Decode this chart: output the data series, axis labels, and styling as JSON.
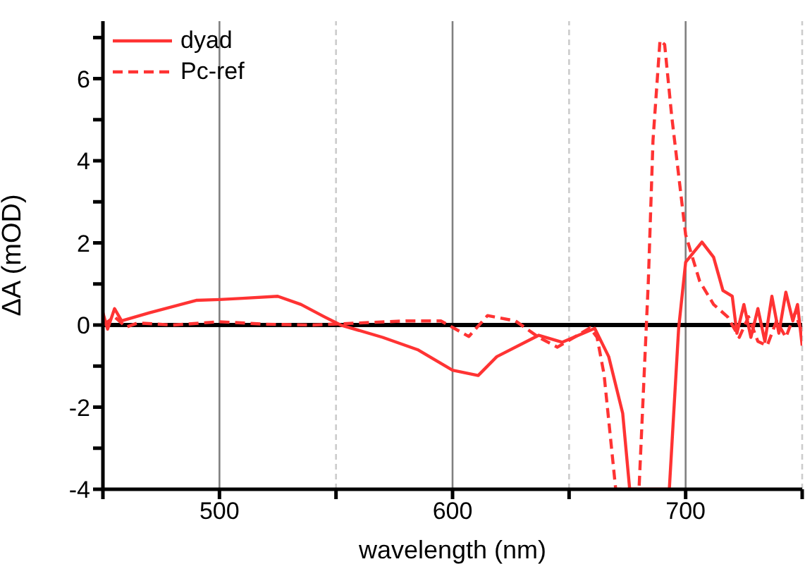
{
  "chart_data": {
    "type": "line",
    "xlabel": "wavelength (nm)",
    "ylabel": "ΔA (mOD)",
    "xlim": [
      450,
      750
    ],
    "ylim": [
      -4,
      7.4
    ],
    "xticks": [
      {
        "value": 450,
        "label": null
      },
      500,
      {
        "value": 550,
        "label": null
      },
      600,
      {
        "value": 650,
        "label": null
      },
      700,
      {
        "value": 750,
        "label": null
      }
    ],
    "yticks": [
      -4,
      {
        "value": -3,
        "label": null
      },
      -2,
      {
        "value": -1,
        "label": null
      },
      0,
      {
        "value": 1,
        "label": null
      },
      2,
      {
        "value": 3,
        "label": null
      },
      4,
      {
        "value": 5,
        "label": null
      },
      6,
      {
        "value": 7,
        "label": null
      }
    ],
    "grid": "x",
    "legend": "top left",
    "ref_lines": [
      {
        "axis": "y",
        "value": 0,
        "color": "#000000"
      }
    ],
    "series": [
      {
        "name": "dyad",
        "color": "#ff3333",
        "line_style": "solid",
        "x": [
          450,
          452,
          455,
          458,
          470,
          490,
          500,
          510,
          525,
          535,
          545,
          552,
          570,
          585,
          600,
          611,
          619,
          637,
          647,
          661,
          667,
          673,
          676,
          693,
          697,
          700,
          707,
          712,
          716,
          720,
          722,
          725,
          728,
          731,
          734,
          737,
          740,
          743,
          746,
          748,
          750
        ],
        "values": [
          0.3,
          -0.1,
          0.4,
          0.1,
          0.3,
          0.6,
          0.62,
          0.65,
          0.7,
          0.5,
          0.2,
          0,
          -0.3,
          -0.6,
          -1.1,
          -1.23,
          -0.77,
          -0.25,
          -0.42,
          -0.08,
          -0.77,
          -2.15,
          -4,
          -4,
          -0.08,
          1.53,
          2.02,
          1.65,
          0.84,
          0.7,
          -0.2,
          0.5,
          -0.3,
          0.4,
          -0.4,
          0.7,
          -0.2,
          0.8,
          0.1,
          0.5,
          -0.5
        ]
      },
      {
        "name": "Pc-ref",
        "color": "#ff3333",
        "line_style": "dashed",
        "x": [
          450,
          455,
          460,
          465,
          480,
          500,
          520,
          540,
          560,
          580,
          595,
          607,
          615,
          627,
          637,
          645,
          659,
          662,
          665,
          670,
          680,
          684,
          686,
          689,
          691,
          694,
          700,
          706,
          712,
          718,
          723,
          727,
          731,
          735,
          739,
          743,
          747,
          750
        ],
        "values": [
          0,
          0.2,
          -0.05,
          0.05,
          0,
          0.08,
          0.02,
          0,
          0.05,
          0.1,
          0.1,
          -0.28,
          0.23,
          0.1,
          -0.3,
          -0.54,
          -0.07,
          -0.3,
          -1.2,
          -4,
          -4,
          1.07,
          4.5,
          6.93,
          6.83,
          5.1,
          2.2,
          1.07,
          0.5,
          0.2,
          -0.3,
          0.2,
          -0.4,
          -0.5,
          0.1,
          -0.3,
          0.3,
          -0.2
        ]
      }
    ]
  }
}
